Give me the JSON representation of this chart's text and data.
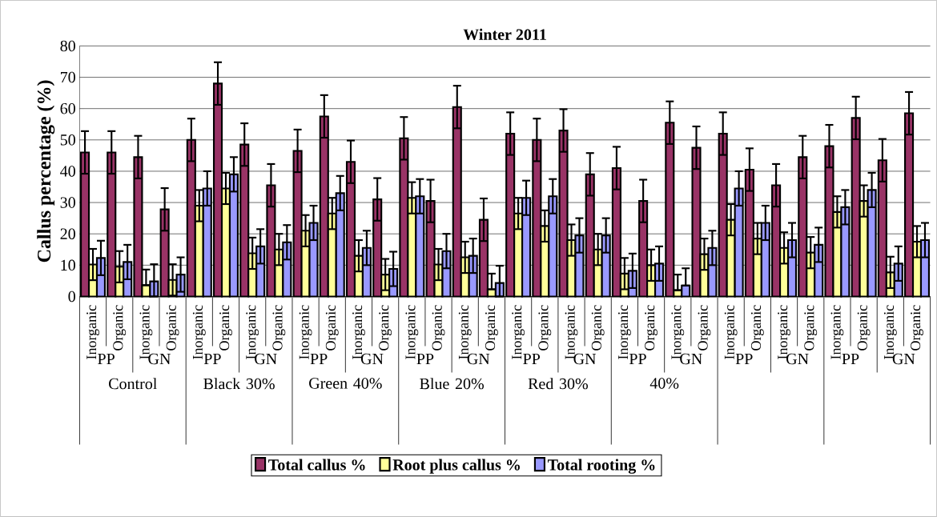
{
  "chart_data": {
    "type": "bar",
    "title": "Winter 2011",
    "ylabel": "Callus percentage (%)",
    "categories": [
      "Inorganic",
      "Organic",
      "Inorganic",
      "Organic",
      "Inorganic",
      "Organic",
      "Inorganic",
      "Organic",
      "Inorganic",
      "Organic",
      "Inorganic",
      "Organic",
      "Inorganic",
      "Organic",
      "Inorganic",
      "Organic",
      "Inorganic",
      "Organic",
      "Inorganic",
      "Organic",
      "Inorganic",
      "Organic",
      "Inorganic",
      "Organic",
      "Inorganic",
      "Organic",
      "Inorganic",
      "Organic",
      "Inorganic",
      "Organic",
      "Inorganic",
      "Organic"
    ],
    "annotations": [
      {
        "text": "PP"
      },
      {
        "text": "GN"
      },
      {
        "text": "PP"
      },
      {
        "text": "GN"
      },
      {
        "text": "PP"
      },
      {
        "text": "GN"
      },
      {
        "text": "PP"
      },
      {
        "text": "GN"
      },
      {
        "text": "PP"
      },
      {
        "text": "GN"
      },
      {
        "text": "PP"
      },
      {
        "text": "GN"
      },
      {
        "text": "PP"
      },
      {
        "text": "GN"
      },
      {
        "text": "PP"
      },
      {
        "text": "GN"
      },
      "Control",
      "Black 30%",
      "Green 40%",
      "Blue 20%",
      "Red 30%",
      "40%"
    ],
    "ylim": [
      0,
      80
    ],
    "yticks": [
      0,
      10,
      20,
      30,
      40,
      50,
      60,
      70,
      80
    ],
    "grid": "y",
    "legend": "bottom",
    "series": [
      {
        "name": "Total callus %",
        "color": "#993366",
        "values": [
          46,
          46,
          44.5,
          27.8,
          50,
          68,
          48.5,
          35.5,
          46.5,
          57.5,
          43,
          31,
          50.5,
          30.5,
          60.5,
          24.5,
          52,
          50,
          53,
          39,
          41,
          30.5,
          55.5,
          47.5,
          52,
          40.5,
          35.5,
          44.5,
          48,
          57,
          43.5,
          58.5
        ],
        "errors": [
          6.8,
          6.8,
          6.8,
          6.8,
          6.8,
          6.8,
          6.8,
          6.8,
          6.8,
          6.8,
          6.8,
          6.8,
          6.8,
          6.8,
          6.8,
          6.8,
          6.8,
          6.8,
          6.8,
          6.8,
          6.8,
          6.8,
          6.8,
          6.8,
          6.8,
          6.8,
          6.8,
          6.8,
          6.8,
          6.8,
          6.8,
          6.8
        ]
      },
      {
        "name": "Root plus callus %",
        "color": "#ffff99",
        "values": [
          10.2,
          9.5,
          3.6,
          5.3,
          29,
          34.5,
          13.8,
          15,
          21,
          26.5,
          13,
          7,
          31.5,
          10.2,
          12.5,
          2.3,
          26.5,
          22.5,
          18,
          15,
          7.3,
          10,
          2,
          13.5,
          24.5,
          18.5,
          15.5,
          14,
          27,
          30.5,
          7.7,
          17.5
        ],
        "errors": [
          5,
          5,
          [
            3.6,
            8.6
          ],
          5,
          5,
          5,
          5,
          5,
          5,
          5,
          5,
          5,
          5,
          5,
          5,
          [
            2.3,
            7.3
          ],
          5,
          5,
          5,
          5,
          5,
          5,
          [
            2,
            7
          ],
          5,
          5,
          5,
          5,
          5,
          5,
          5,
          5,
          5
        ]
      },
      {
        "name": "Total rooting %",
        "color": "#9999ff",
        "values": [
          12.3,
          11,
          4.8,
          7,
          34.5,
          39,
          16,
          17.3,
          23.5,
          33,
          15.5,
          8.8,
          32,
          14.5,
          13,
          4.3,
          31.5,
          32,
          19.5,
          19.5,
          8.2,
          10.5,
          3.5,
          15.5,
          34.5,
          23.5,
          18,
          16.5,
          28.5,
          34,
          10.5,
          18
        ],
        "errors": [
          5.5,
          5.5,
          [
            0,
            10.3
          ],
          5.5,
          5.5,
          5.5,
          5.5,
          5.5,
          5.5,
          5.5,
          5.5,
          5.5,
          5.5,
          5.5,
          5.5,
          [
            0,
            9.8
          ],
          5.5,
          5.5,
          5.5,
          5.5,
          5.5,
          5.5,
          [
            3.5,
            9
          ],
          5.5,
          5.5,
          5.5,
          5.5,
          5.5,
          5.5,
          5.5,
          5.5,
          5.5
        ]
      }
    ]
  }
}
